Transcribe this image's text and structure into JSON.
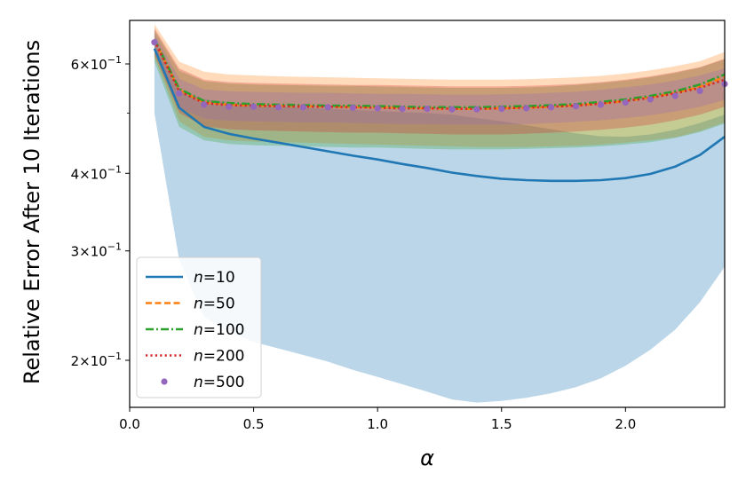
{
  "chart_data": {
    "type": "line",
    "title": "",
    "xlabel": "α",
    "ylabel": "Relative Error After 10 Iterations",
    "x_range": [
      0.0,
      2.4
    ],
    "y_range": [
      0.168,
      0.705
    ],
    "y_scale": "log",
    "grid": false,
    "legend_position": "lower-left",
    "x_ticks": [
      0.0,
      0.5,
      1.0,
      1.5,
      2.0
    ],
    "x_tick_labels": [
      "0.0",
      "0.5",
      "1.0",
      "1.5",
      "2.0"
    ],
    "y_ticks": [
      {
        "value": 0.6,
        "mantissa": "6",
        "exponent": "−1"
      },
      {
        "value": 0.4,
        "mantissa": "4",
        "exponent": "−1"
      },
      {
        "value": 0.3,
        "mantissa": "3",
        "exponent": "−1"
      },
      {
        "value": 0.2,
        "mantissa": "2",
        "exponent": "−1"
      }
    ],
    "y_minor_ticks": [
      0.5
    ],
    "x": [
      0.1,
      0.2,
      0.3,
      0.4,
      0.5,
      0.6,
      0.7,
      0.8,
      0.9,
      1.0,
      1.1,
      1.2,
      1.3,
      1.4,
      1.5,
      1.6,
      1.7,
      1.8,
      1.9,
      2.0,
      2.1,
      2.2,
      2.3,
      2.4
    ],
    "series": [
      {
        "name": "n=10",
        "color": "#1f77b4",
        "style": "solid",
        "values": [
          0.635,
          0.51,
          0.475,
          0.463,
          0.455,
          0.448,
          0.441,
          0.434,
          0.427,
          0.421,
          0.414,
          0.408,
          0.401,
          0.396,
          0.392,
          0.39,
          0.389,
          0.389,
          0.39,
          0.393,
          0.399,
          0.41,
          0.428,
          0.458
        ],
        "band_low": [
          0.5,
          0.29,
          0.235,
          0.222,
          0.214,
          0.209,
          0.204,
          0.199,
          0.193,
          0.188,
          0.183,
          0.178,
          0.173,
          0.171,
          0.172,
          0.174,
          0.177,
          0.181,
          0.187,
          0.196,
          0.208,
          0.224,
          0.248,
          0.283
        ],
        "band_high": [
          0.66,
          0.545,
          0.526,
          0.52,
          0.516,
          0.513,
          0.51,
          0.508,
          0.506,
          0.504,
          0.502,
          0.5,
          0.497,
          0.491,
          0.485,
          0.478,
          0.471,
          0.464,
          0.459,
          0.458,
          0.462,
          0.47,
          0.482,
          0.497
        ]
      },
      {
        "name": "n=50",
        "color": "#ff7f0e",
        "style": "dashed",
        "values": [
          0.655,
          0.545,
          0.52,
          0.516,
          0.514,
          0.514,
          0.513,
          0.512,
          0.511,
          0.511,
          0.51,
          0.509,
          0.508,
          0.508,
          0.509,
          0.51,
          0.512,
          0.515,
          0.518,
          0.523,
          0.53,
          0.539,
          0.551,
          0.572
        ],
        "band_low": [
          0.615,
          0.485,
          0.458,
          0.452,
          0.45,
          0.449,
          0.448,
          0.447,
          0.446,
          0.445,
          0.444,
          0.443,
          0.442,
          0.441,
          0.441,
          0.441,
          0.442,
          0.443,
          0.445,
          0.448,
          0.452,
          0.457,
          0.468,
          0.483
        ],
        "band_high": [
          0.695,
          0.605,
          0.583,
          0.577,
          0.575,
          0.573,
          0.572,
          0.571,
          0.57,
          0.569,
          0.568,
          0.567,
          0.566,
          0.566,
          0.566,
          0.567,
          0.569,
          0.571,
          0.574,
          0.579,
          0.586,
          0.595,
          0.606,
          0.627
        ]
      },
      {
        "name": "n=100",
        "color": "#2ca02c",
        "style": "dashdot",
        "values": [
          0.657,
          0.547,
          0.523,
          0.519,
          0.517,
          0.516,
          0.515,
          0.514,
          0.514,
          0.513,
          0.512,
          0.511,
          0.511,
          0.511,
          0.512,
          0.513,
          0.515,
          0.517,
          0.521,
          0.526,
          0.533,
          0.542,
          0.556,
          0.577
        ],
        "band_low": [
          0.605,
          0.475,
          0.452,
          0.446,
          0.444,
          0.443,
          0.442,
          0.441,
          0.44,
          0.44,
          0.439,
          0.438,
          0.437,
          0.437,
          0.437,
          0.438,
          0.439,
          0.44,
          0.442,
          0.445,
          0.449,
          0.456,
          0.466,
          0.481
        ],
        "band_high": [
          0.68,
          0.585,
          0.563,
          0.558,
          0.556,
          0.555,
          0.554,
          0.553,
          0.553,
          0.552,
          0.551,
          0.55,
          0.549,
          0.549,
          0.549,
          0.55,
          0.552,
          0.555,
          0.559,
          0.564,
          0.571,
          0.58,
          0.592,
          0.61
        ]
      },
      {
        "name": "n=200",
        "color": "#d62728",
        "style": "dotted",
        "values": [
          0.654,
          0.542,
          0.519,
          0.515,
          0.514,
          0.513,
          0.512,
          0.512,
          0.511,
          0.51,
          0.509,
          0.509,
          0.508,
          0.508,
          0.509,
          0.51,
          0.512,
          0.514,
          0.518,
          0.523,
          0.529,
          0.538,
          0.549,
          0.566
        ],
        "band_low": [
          0.62,
          0.5,
          0.476,
          0.471,
          0.469,
          0.468,
          0.467,
          0.466,
          0.465,
          0.465,
          0.464,
          0.463,
          0.462,
          0.462,
          0.462,
          0.463,
          0.465,
          0.467,
          0.47,
          0.474,
          0.479,
          0.487,
          0.497,
          0.512
        ],
        "band_high": [
          0.685,
          0.59,
          0.566,
          0.561,
          0.559,
          0.558,
          0.557,
          0.556,
          0.555,
          0.555,
          0.554,
          0.553,
          0.552,
          0.552,
          0.552,
          0.553,
          0.555,
          0.557,
          0.561,
          0.566,
          0.573,
          0.582,
          0.593,
          0.612
        ]
      },
      {
        "name": "n=500",
        "color": "#9467bd",
        "style": "markers",
        "values": [
          0.65,
          0.538,
          0.516,
          0.512,
          0.512,
          0.511,
          0.511,
          0.511,
          0.51,
          0.509,
          0.508,
          0.508,
          0.507,
          0.507,
          0.508,
          0.509,
          0.511,
          0.513,
          0.516,
          0.52,
          0.526,
          0.533,
          0.543,
          0.557
        ],
        "band_low": [
          0.63,
          0.51,
          0.49,
          0.486,
          0.485,
          0.484,
          0.483,
          0.483,
          0.482,
          0.481,
          0.48,
          0.48,
          0.479,
          0.479,
          0.479,
          0.48,
          0.482,
          0.484,
          0.487,
          0.491,
          0.496,
          0.503,
          0.512,
          0.525
        ],
        "band_high": [
          0.672,
          0.568,
          0.546,
          0.542,
          0.541,
          0.54,
          0.539,
          0.539,
          0.538,
          0.537,
          0.537,
          0.536,
          0.535,
          0.535,
          0.536,
          0.537,
          0.539,
          0.541,
          0.545,
          0.55,
          0.556,
          0.564,
          0.575,
          0.59
        ]
      }
    ]
  }
}
